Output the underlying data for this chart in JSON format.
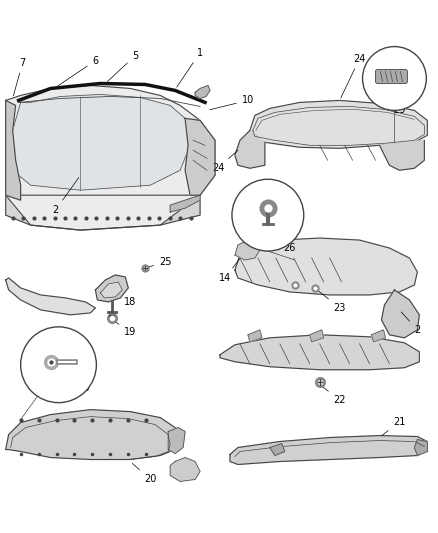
{
  "bg_color": "#ffffff",
  "line_color": "#444444",
  "text_color": "#000000",
  "figsize": [
    4.38,
    5.33
  ],
  "dpi": 100
}
